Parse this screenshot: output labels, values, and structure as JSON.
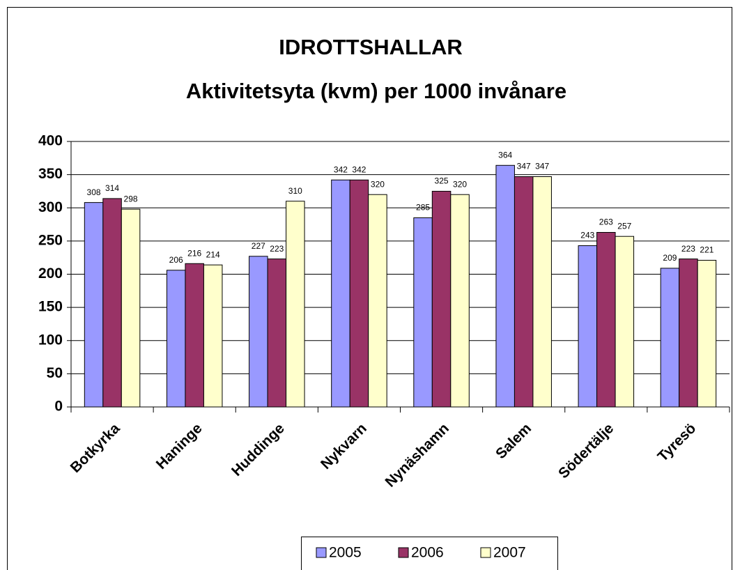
{
  "chart_data": {
    "type": "bar",
    "title": "IDROTTSHALLAR",
    "subtitle": "Aktivitetsyta (kvm) per 1000 invånare",
    "categories": [
      "Botkyrka",
      "Haninge",
      "Huddinge",
      "Nykvarn",
      "Nynäshamn",
      "Salem",
      "Södertälje",
      "Tyresö"
    ],
    "series": [
      {
        "name": "2005",
        "color": "#9999ff",
        "values": [
          308,
          206,
          227,
          342,
          285,
          364,
          243,
          209
        ]
      },
      {
        "name": "2006",
        "color": "#993366",
        "values": [
          314,
          216,
          223,
          342,
          325,
          347,
          263,
          223
        ]
      },
      {
        "name": "2007",
        "color": "#ffffcc",
        "values": [
          298,
          214,
          310,
          320,
          320,
          347,
          257,
          221
        ]
      }
    ],
    "ylim": [
      0,
      400
    ],
    "yticks": [
      0,
      50,
      100,
      150,
      200,
      250,
      300,
      350,
      400
    ],
    "grid": true,
    "legend": "bottom"
  }
}
